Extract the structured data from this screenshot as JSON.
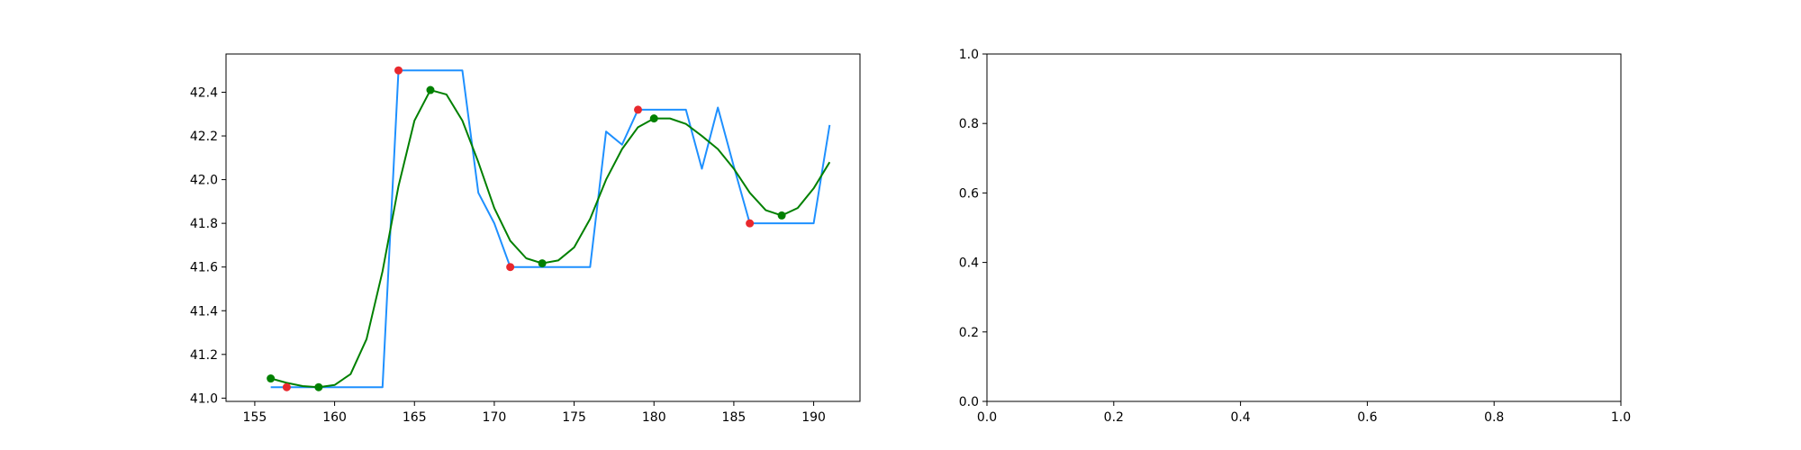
{
  "chart_data": [
    {
      "type": "line",
      "xlim": [
        153.2,
        192.9
      ],
      "ylim": [
        40.985,
        42.575
      ],
      "x_ticks": [
        155,
        160,
        165,
        170,
        175,
        180,
        185,
        190
      ],
      "y_ticks": [
        41.0,
        41.2,
        41.4,
        41.6,
        41.8,
        42.0,
        42.2,
        42.4
      ],
      "x_tick_labels": [
        "155",
        "160",
        "165",
        "170",
        "175",
        "180",
        "185",
        "190"
      ],
      "y_tick_labels": [
        "41.0",
        "41.2",
        "41.4",
        "41.6",
        "41.8",
        "42.0",
        "42.2",
        "42.4"
      ],
      "grid": false,
      "series": [
        {
          "color": "#1e90ff",
          "x": [
            156,
            157,
            158,
            159,
            160,
            161,
            162,
            163,
            164,
            165,
            166,
            167,
            168,
            169,
            170,
            171,
            172,
            173,
            174,
            175,
            176,
            177,
            178,
            179,
            180,
            181,
            182,
            183,
            184,
            185,
            186,
            187,
            188,
            189,
            190,
            191
          ],
          "y": [
            41.05,
            41.05,
            41.05,
            41.05,
            41.05,
            41.05,
            41.05,
            41.05,
            42.5,
            42.5,
            42.5,
            42.5,
            42.5,
            41.94,
            41.8,
            41.6,
            41.6,
            41.6,
            41.6,
            41.6,
            41.6,
            42.22,
            42.16,
            42.32,
            42.32,
            42.32,
            42.32,
            42.05,
            42.33,
            42.06,
            41.8,
            41.8,
            41.8,
            41.8,
            41.8,
            42.25
          ]
        },
        {
          "color": "#008000",
          "x": [
            156,
            157,
            158,
            159,
            160,
            161,
            162,
            163,
            164,
            165,
            166,
            167,
            168,
            169,
            170,
            171,
            172,
            173,
            174,
            175,
            176,
            177,
            178,
            179,
            180,
            181,
            182,
            183,
            184,
            185,
            186,
            187,
            188,
            189,
            190,
            191
          ],
          "y": [
            41.09,
            41.07,
            41.055,
            41.05,
            41.06,
            41.11,
            41.27,
            41.58,
            41.97,
            42.27,
            42.41,
            42.39,
            42.27,
            42.08,
            41.87,
            41.72,
            41.64,
            41.617,
            41.63,
            41.69,
            41.82,
            42.0,
            42.14,
            42.24,
            42.28,
            42.28,
            42.255,
            42.2,
            42.14,
            42.05,
            41.94,
            41.86,
            41.836,
            41.87,
            41.96,
            42.08
          ]
        }
      ],
      "markers": [
        {
          "color": "#e8282d",
          "points": [
            [
              157,
              41.05
            ],
            [
              164,
              42.5
            ],
            [
              171,
              41.6
            ],
            [
              179,
              42.32
            ],
            [
              186,
              41.8
            ]
          ]
        },
        {
          "color": "#008000",
          "points": [
            [
              156,
              41.09
            ],
            [
              159,
              41.05
            ],
            [
              166,
              42.41
            ],
            [
              173,
              41.617
            ],
            [
              180,
              42.28
            ],
            [
              188,
              41.836
            ]
          ]
        }
      ]
    },
    {
      "type": "line",
      "xlim": [
        0.0,
        1.0
      ],
      "ylim": [
        0.0,
        1.0
      ],
      "x_ticks": [
        0.0,
        0.2,
        0.4,
        0.6,
        0.8,
        1.0
      ],
      "y_ticks": [
        0.0,
        0.2,
        0.4,
        0.6,
        0.8,
        1.0
      ],
      "x_tick_labels": [
        "0.0",
        "0.2",
        "0.4",
        "0.6",
        "0.8",
        "1.0"
      ],
      "y_tick_labels": [
        "0.0",
        "0.2",
        "0.4",
        "0.6",
        "0.8",
        "1.0"
      ],
      "grid": false,
      "series": []
    }
  ]
}
